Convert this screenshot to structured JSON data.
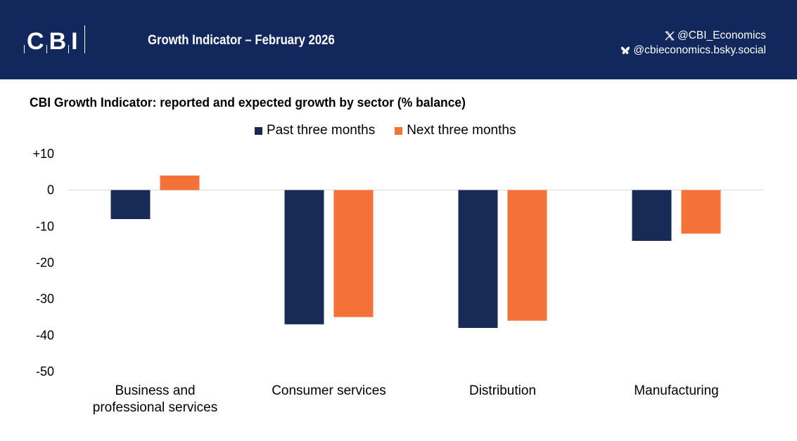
{
  "header": {
    "logo_text": [
      "C",
      "B",
      "I"
    ],
    "title": "Growth Indicator – February 2026",
    "social": [
      {
        "icon": "x-icon",
        "handle": "@CBI_Economics"
      },
      {
        "icon": "bluesky-butterfly-icon",
        "handle": "@cbieconomics.bsky.social"
      }
    ]
  },
  "colors": {
    "header_bg": "#12275c",
    "past": "#172b57",
    "next": "#f47237",
    "gridline": "#d9d9d9"
  },
  "chart_data": {
    "type": "bar",
    "title": "CBI Growth Indicator: reported and expected growth by sector (% balance)",
    "xlabel": "",
    "ylabel": "",
    "ylim": [
      -50,
      10
    ],
    "yticks": [
      10,
      0,
      -10,
      -20,
      -30,
      -40,
      -50
    ],
    "ytick_labels": [
      "+10",
      "0",
      "-10",
      "-20",
      "-30",
      "-40",
      "-50"
    ],
    "grid": false,
    "zero_line": true,
    "legend_position": "top-center",
    "categories": [
      [
        "Business and",
        "professional services"
      ],
      [
        "Consumer services"
      ],
      [
        "Distribution"
      ],
      [
        "Manufacturing"
      ]
    ],
    "series": [
      {
        "name": "Past three months",
        "color": "#172b57",
        "values": [
          -8,
          -37,
          -38,
          -14
        ]
      },
      {
        "name": "Next three months",
        "color": "#f47237",
        "values": [
          4,
          -35,
          -36,
          -12
        ]
      }
    ]
  }
}
